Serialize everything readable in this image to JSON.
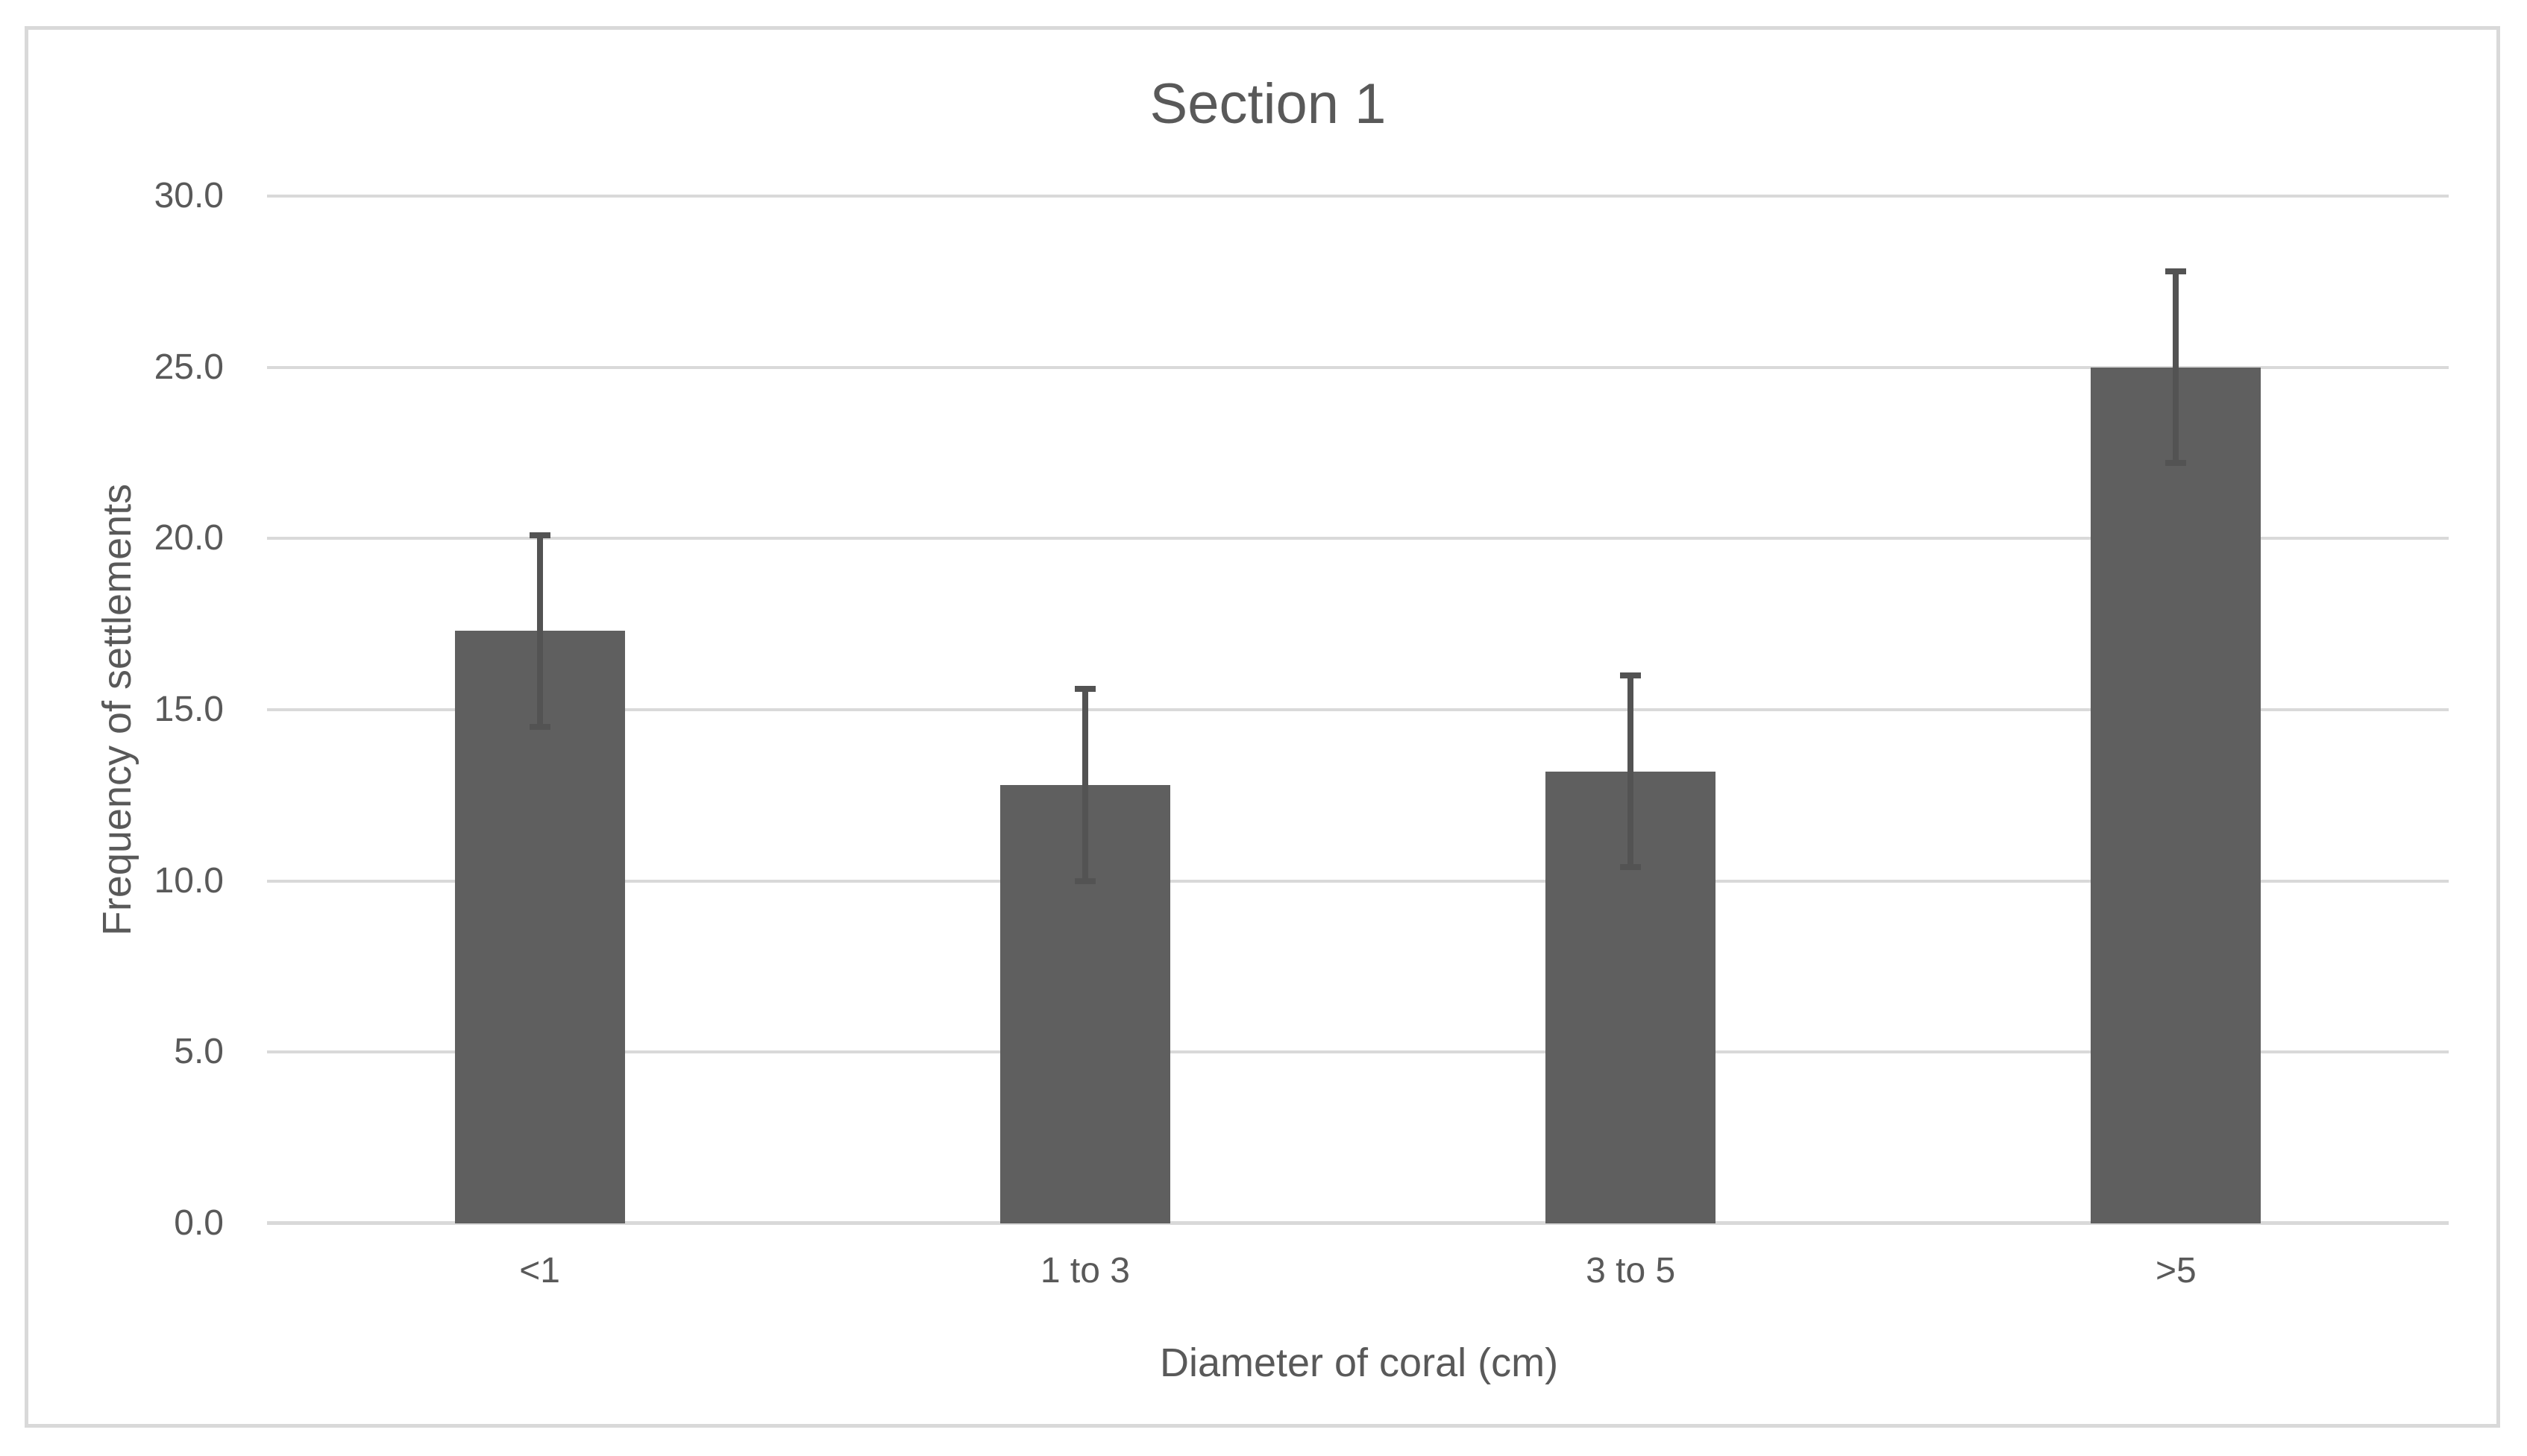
{
  "chart_data": {
    "type": "bar",
    "title": "Section 1",
    "categories": [
      "<1",
      "1 to 3",
      "3 to 5",
      ">5"
    ],
    "values": [
      17.3,
      12.8,
      13.2,
      25.0
    ],
    "errors": [
      2.8,
      2.8,
      2.8,
      2.8
    ],
    "xlabel": "Diameter of coral (cm)",
    "ylabel": "Frequency of settlements",
    "ylim": [
      0,
      30
    ],
    "ytick_step": 5,
    "ytick_labels": [
      "0.0",
      "5.0",
      "10.0",
      "15.0",
      "20.0",
      "25.0",
      "30.0"
    ],
    "grid": true,
    "legend": "none",
    "colors": {
      "bar_fill": "#5F5F5F",
      "error_bar": "#535353",
      "gridline": "#D9D9D9",
      "frame_border": "#D9D9D9",
      "text": "#595959",
      "background": "#FFFFFF"
    }
  }
}
